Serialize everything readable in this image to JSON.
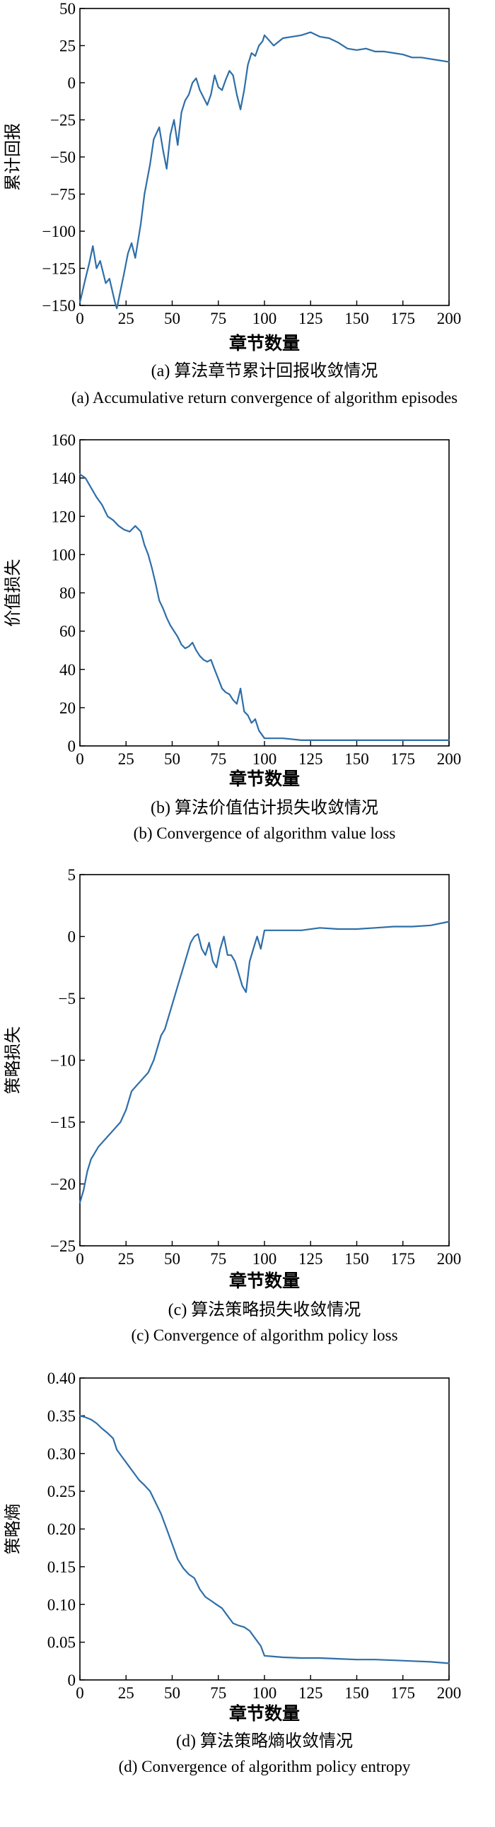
{
  "colors": {
    "series": "#2e6ea8",
    "axis": "#000000"
  },
  "chart_data": [
    {
      "type": "line",
      "xlabel": "章节数量",
      "ylabel": "累计回报",
      "caption_cn": "(a) 算法章节累计回报收敛情况",
      "caption_en": "(a) Accumulative return convergence of algorithm episodes",
      "xlim": [
        0,
        200
      ],
      "ylim": [
        -150,
        50
      ],
      "xticks": [
        "0",
        "25",
        "50",
        "75",
        "100",
        "125",
        "150",
        "175",
        "200"
      ],
      "yticks": [
        "50",
        "25",
        "0",
        "-25",
        "-50",
        "-75",
        "-100",
        "-125",
        "-150"
      ],
      "yticks_values": [
        50,
        25,
        0,
        -25,
        -50,
        -75,
        -100,
        -125,
        -150
      ],
      "series": [
        {
          "x": [
            0,
            3,
            5,
            7,
            9,
            11,
            14,
            16,
            19,
            20,
            22,
            24,
            26,
            28,
            30,
            33,
            35,
            38,
            40,
            43,
            45,
            47,
            49,
            51,
            53,
            55,
            57,
            59,
            61,
            63,
            65,
            67,
            69,
            71,
            73,
            75,
            77,
            79,
            81,
            83,
            85,
            87,
            89,
            91,
            93,
            95,
            97,
            99,
            100,
            105,
            110,
            115,
            120,
            125,
            130,
            135,
            140,
            145,
            150,
            155,
            160,
            165,
            170,
            175,
            180,
            185,
            190,
            195,
            200
          ],
          "y": [
            -148,
            -132,
            -122,
            -110,
            -125,
            -120,
            -135,
            -132,
            -148,
            -152,
            -140,
            -128,
            -115,
            -108,
            -118,
            -95,
            -75,
            -55,
            -38,
            -30,
            -45,
            -58,
            -35,
            -25,
            -42,
            -20,
            -12,
            -8,
            0,
            3,
            -5,
            -10,
            -15,
            -8,
            5,
            -3,
            -5,
            2,
            8,
            5,
            -8,
            -18,
            -5,
            12,
            20,
            18,
            25,
            28,
            32,
            25,
            30,
            31,
            32,
            34,
            31,
            30,
            27,
            23,
            22,
            23,
            21,
            21,
            20,
            19,
            17,
            17,
            16,
            15,
            14
          ]
        }
      ]
    },
    {
      "type": "line",
      "xlabel": "章节数量",
      "ylabel": "价值损失",
      "caption_cn": "(b) 算法价值估计损失收敛情况",
      "caption_en": "(b) Convergence of algorithm value loss",
      "xlim": [
        0,
        200
      ],
      "ylim": [
        0,
        160
      ],
      "xticks": [
        "0",
        "25",
        "50",
        "75",
        "100",
        "125",
        "150",
        "175",
        "200"
      ],
      "yticks": [
        "160",
        "140",
        "120",
        "100",
        "80",
        "60",
        "40",
        "20",
        "0"
      ],
      "yticks_values": [
        160,
        140,
        120,
        100,
        80,
        60,
        40,
        20,
        0
      ],
      "series": [
        {
          "x": [
            0,
            3,
            6,
            9,
            12,
            15,
            18,
            21,
            24,
            27,
            30,
            33,
            35,
            37,
            39,
            41,
            43,
            45,
            47,
            49,
            51,
            53,
            55,
            57,
            59,
            61,
            63,
            65,
            67,
            69,
            71,
            73,
            75,
            77,
            79,
            81,
            83,
            85,
            87,
            89,
            91,
            93,
            95,
            97,
            100,
            110,
            120,
            130,
            140,
            150,
            160,
            170,
            180,
            190,
            200
          ],
          "y": [
            142,
            140,
            135,
            130,
            126,
            120,
            118,
            115,
            113,
            112,
            115,
            112,
            105,
            100,
            93,
            85,
            76,
            72,
            67,
            63,
            60,
            57,
            53,
            51,
            52,
            54,
            50,
            47,
            45,
            44,
            45,
            40,
            35,
            30,
            28,
            27,
            24,
            22,
            30,
            18,
            16,
            12,
            14,
            8,
            4,
            4,
            3,
            3,
            3,
            3,
            3,
            3,
            3,
            3,
            3
          ]
        }
      ]
    },
    {
      "type": "line",
      "xlabel": "章节数量",
      "ylabel": "策略损失",
      "caption_cn": "(c) 算法策略损失收敛情况",
      "caption_en": "(c) Convergence of algorithm policy loss",
      "xlim": [
        0,
        200
      ],
      "ylim": [
        -25,
        5
      ],
      "xticks": [
        "0",
        "25",
        "50",
        "75",
        "100",
        "125",
        "150",
        "175",
        "200"
      ],
      "yticks": [
        "5",
        "0",
        "-5",
        "-10",
        "-15",
        "-20",
        "-25"
      ],
      "yticks_values": [
        5,
        0,
        -5,
        -10,
        -15,
        -20,
        -25
      ],
      "series": [
        {
          "x": [
            0,
            2,
            4,
            6,
            8,
            10,
            13,
            16,
            19,
            22,
            25,
            28,
            31,
            34,
            37,
            40,
            42,
            44,
            46,
            48,
            50,
            52,
            54,
            56,
            58,
            60,
            62,
            64,
            66,
            68,
            70,
            72,
            74,
            76,
            78,
            80,
            82,
            84,
            86,
            88,
            90,
            92,
            94,
            96,
            98,
            100,
            110,
            120,
            130,
            140,
            150,
            160,
            170,
            180,
            190,
            200
          ],
          "y": [
            -21.5,
            -20.5,
            -19,
            -18,
            -17.5,
            -17,
            -16.5,
            -16,
            -15.5,
            -15,
            -14,
            -12.5,
            -12,
            -11.5,
            -11,
            -10,
            -9,
            -8,
            -7.5,
            -6.5,
            -5.5,
            -4.5,
            -3.5,
            -2.5,
            -1.5,
            -0.5,
            0,
            0.2,
            -1,
            -1.5,
            -0.5,
            -2,
            -2.5,
            -1,
            0,
            -1.5,
            -1.5,
            -2,
            -3,
            -4,
            -4.5,
            -2,
            -1,
            0,
            -1,
            0.5,
            0.5,
            0.5,
            0.7,
            0.6,
            0.6,
            0.7,
            0.8,
            0.8,
            0.9,
            1.2
          ]
        }
      ]
    },
    {
      "type": "line",
      "xlabel": "章节数量",
      "ylabel": "策略熵",
      "caption_cn": "(d) 算法策略熵收敛情况",
      "caption_en": "(d) Convergence of algorithm policy entropy",
      "xlim": [
        0,
        200
      ],
      "ylim": [
        0,
        0.4
      ],
      "xticks": [
        "0",
        "25",
        "50",
        "75",
        "100",
        "125",
        "150",
        "175",
        "200"
      ],
      "yticks": [
        "0.40",
        "0.35",
        "0.30",
        "0.25",
        "0.20",
        "0.15",
        "0.10",
        "0.05",
        "0"
      ],
      "yticks_values": [
        0.4,
        0.35,
        0.3,
        0.25,
        0.2,
        0.15,
        0.1,
        0.05,
        0
      ],
      "series": [
        {
          "x": [
            0,
            3,
            6,
            9,
            12,
            15,
            18,
            20,
            23,
            26,
            29,
            32,
            35,
            38,
            41,
            44,
            47,
            50,
            53,
            56,
            59,
            62,
            65,
            68,
            71,
            74,
            77,
            80,
            83,
            86,
            89,
            92,
            95,
            98,
            100,
            110,
            120,
            130,
            140,
            150,
            160,
            170,
            180,
            190,
            200
          ],
          "y": [
            0.35,
            0.348,
            0.345,
            0.34,
            0.333,
            0.327,
            0.32,
            0.305,
            0.295,
            0.285,
            0.275,
            0.265,
            0.258,
            0.25,
            0.235,
            0.22,
            0.2,
            0.18,
            0.16,
            0.148,
            0.14,
            0.135,
            0.12,
            0.11,
            0.105,
            0.1,
            0.095,
            0.085,
            0.075,
            0.072,
            0.07,
            0.065,
            0.055,
            0.045,
            0.032,
            0.03,
            0.029,
            0.029,
            0.028,
            0.027,
            0.027,
            0.026,
            0.025,
            0.024,
            0.022
          ]
        }
      ]
    }
  ]
}
